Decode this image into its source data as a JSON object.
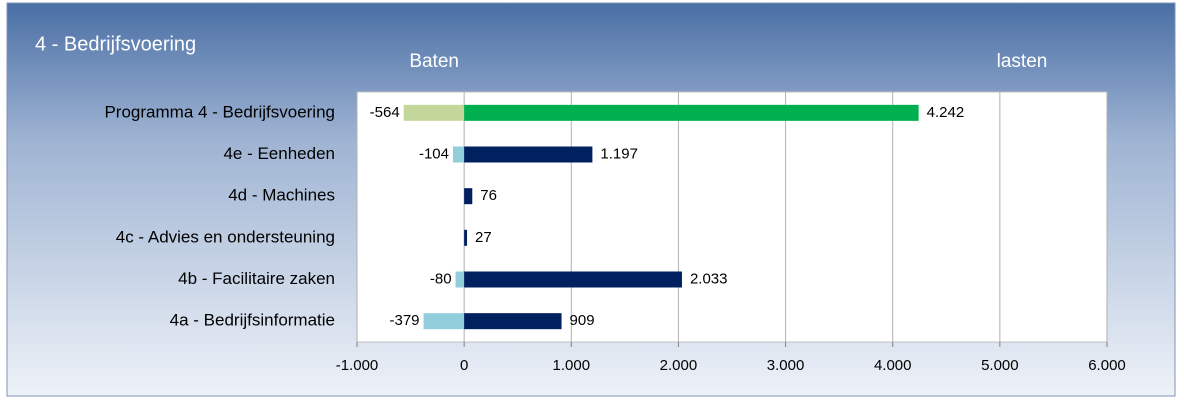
{
  "chart_data": {
    "type": "diverging-bar",
    "title": "4 - Bedrijfsvoering",
    "categories": [
      "Programma 4 - Bedrijfsvoering",
      "4e - Eenheden",
      "4d - Machines",
      "4c - Advies en ondersteuning",
      "4b - Facilitaire zaken",
      "4a - Bedrijfsinformatie"
    ],
    "series": [
      {
        "name": "Baten",
        "color": "#92cddc",
        "colors": [
          "#c4d79b",
          "#92cddc",
          "#92cddc",
          "#92cddc",
          "#92cddc",
          "#92cddc"
        ],
        "values": [
          -564,
          -104,
          null,
          null,
          -80,
          -379
        ],
        "value_labels": [
          "-564",
          "-104",
          null,
          null,
          "-80",
          "-379"
        ]
      },
      {
        "name": "lasten",
        "color": "#002060",
        "colors": [
          "#00b050",
          "#002060",
          "#002060",
          "#002060",
          "#002060",
          "#002060"
        ],
        "values": [
          4242,
          1197,
          76,
          27,
          2033,
          909
        ],
        "value_labels": [
          "4.242",
          "1.197",
          "76",
          "27",
          "2.033",
          "909"
        ]
      }
    ],
    "xlim": [
      -1000,
      6000
    ],
    "xticks": [
      {
        "value": -1000,
        "label": "-1.000"
      },
      0,
      {
        "value": 1000,
        "label": "1.000"
      },
      {
        "value": 2000,
        "label": "2.000"
      },
      {
        "value": 3000,
        "label": "3.000"
      },
      {
        "value": 4000,
        "label": "4.000"
      },
      {
        "value": 5000,
        "label": "5.000"
      },
      {
        "value": 6000,
        "label": "6.000"
      }
    ],
    "grid": true
  }
}
